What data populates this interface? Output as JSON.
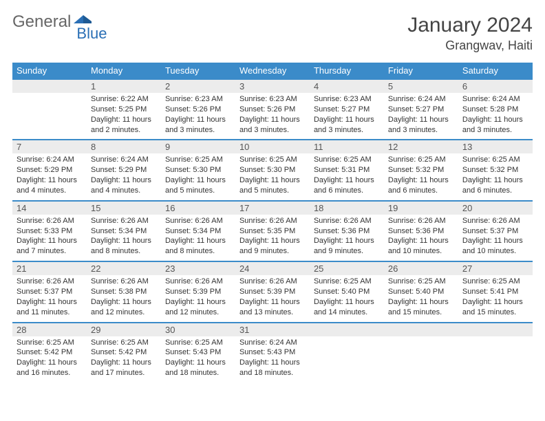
{
  "brand": {
    "left": "General",
    "right": "Blue"
  },
  "title": "January 2024",
  "location": "Grangwav, Haiti",
  "colors": {
    "header_bg": "#3b8bc9",
    "header_text": "#ffffff",
    "daynum_bg": "#ececec",
    "border": "#3b8bc9",
    "brand_gray": "#666666",
    "brand_blue": "#2a6fb5"
  },
  "dow": [
    "Sunday",
    "Monday",
    "Tuesday",
    "Wednesday",
    "Thursday",
    "Friday",
    "Saturday"
  ],
  "weeks": [
    [
      {
        "n": "",
        "sr": "",
        "ss": "",
        "dl": ""
      },
      {
        "n": "1",
        "sr": "Sunrise: 6:22 AM",
        "ss": "Sunset: 5:25 PM",
        "dl": "Daylight: 11 hours and 2 minutes."
      },
      {
        "n": "2",
        "sr": "Sunrise: 6:23 AM",
        "ss": "Sunset: 5:26 PM",
        "dl": "Daylight: 11 hours and 3 minutes."
      },
      {
        "n": "3",
        "sr": "Sunrise: 6:23 AM",
        "ss": "Sunset: 5:26 PM",
        "dl": "Daylight: 11 hours and 3 minutes."
      },
      {
        "n": "4",
        "sr": "Sunrise: 6:23 AM",
        "ss": "Sunset: 5:27 PM",
        "dl": "Daylight: 11 hours and 3 minutes."
      },
      {
        "n": "5",
        "sr": "Sunrise: 6:24 AM",
        "ss": "Sunset: 5:27 PM",
        "dl": "Daylight: 11 hours and 3 minutes."
      },
      {
        "n": "6",
        "sr": "Sunrise: 6:24 AM",
        "ss": "Sunset: 5:28 PM",
        "dl": "Daylight: 11 hours and 3 minutes."
      }
    ],
    [
      {
        "n": "7",
        "sr": "Sunrise: 6:24 AM",
        "ss": "Sunset: 5:29 PM",
        "dl": "Daylight: 11 hours and 4 minutes."
      },
      {
        "n": "8",
        "sr": "Sunrise: 6:24 AM",
        "ss": "Sunset: 5:29 PM",
        "dl": "Daylight: 11 hours and 4 minutes."
      },
      {
        "n": "9",
        "sr": "Sunrise: 6:25 AM",
        "ss": "Sunset: 5:30 PM",
        "dl": "Daylight: 11 hours and 5 minutes."
      },
      {
        "n": "10",
        "sr": "Sunrise: 6:25 AM",
        "ss": "Sunset: 5:30 PM",
        "dl": "Daylight: 11 hours and 5 minutes."
      },
      {
        "n": "11",
        "sr": "Sunrise: 6:25 AM",
        "ss": "Sunset: 5:31 PM",
        "dl": "Daylight: 11 hours and 6 minutes."
      },
      {
        "n": "12",
        "sr": "Sunrise: 6:25 AM",
        "ss": "Sunset: 5:32 PM",
        "dl": "Daylight: 11 hours and 6 minutes."
      },
      {
        "n": "13",
        "sr": "Sunrise: 6:25 AM",
        "ss": "Sunset: 5:32 PM",
        "dl": "Daylight: 11 hours and 6 minutes."
      }
    ],
    [
      {
        "n": "14",
        "sr": "Sunrise: 6:26 AM",
        "ss": "Sunset: 5:33 PM",
        "dl": "Daylight: 11 hours and 7 minutes."
      },
      {
        "n": "15",
        "sr": "Sunrise: 6:26 AM",
        "ss": "Sunset: 5:34 PM",
        "dl": "Daylight: 11 hours and 8 minutes."
      },
      {
        "n": "16",
        "sr": "Sunrise: 6:26 AM",
        "ss": "Sunset: 5:34 PM",
        "dl": "Daylight: 11 hours and 8 minutes."
      },
      {
        "n": "17",
        "sr": "Sunrise: 6:26 AM",
        "ss": "Sunset: 5:35 PM",
        "dl": "Daylight: 11 hours and 9 minutes."
      },
      {
        "n": "18",
        "sr": "Sunrise: 6:26 AM",
        "ss": "Sunset: 5:36 PM",
        "dl": "Daylight: 11 hours and 9 minutes."
      },
      {
        "n": "19",
        "sr": "Sunrise: 6:26 AM",
        "ss": "Sunset: 5:36 PM",
        "dl": "Daylight: 11 hours and 10 minutes."
      },
      {
        "n": "20",
        "sr": "Sunrise: 6:26 AM",
        "ss": "Sunset: 5:37 PM",
        "dl": "Daylight: 11 hours and 10 minutes."
      }
    ],
    [
      {
        "n": "21",
        "sr": "Sunrise: 6:26 AM",
        "ss": "Sunset: 5:37 PM",
        "dl": "Daylight: 11 hours and 11 minutes."
      },
      {
        "n": "22",
        "sr": "Sunrise: 6:26 AM",
        "ss": "Sunset: 5:38 PM",
        "dl": "Daylight: 11 hours and 12 minutes."
      },
      {
        "n": "23",
        "sr": "Sunrise: 6:26 AM",
        "ss": "Sunset: 5:39 PM",
        "dl": "Daylight: 11 hours and 12 minutes."
      },
      {
        "n": "24",
        "sr": "Sunrise: 6:26 AM",
        "ss": "Sunset: 5:39 PM",
        "dl": "Daylight: 11 hours and 13 minutes."
      },
      {
        "n": "25",
        "sr": "Sunrise: 6:25 AM",
        "ss": "Sunset: 5:40 PM",
        "dl": "Daylight: 11 hours and 14 minutes."
      },
      {
        "n": "26",
        "sr": "Sunrise: 6:25 AM",
        "ss": "Sunset: 5:40 PM",
        "dl": "Daylight: 11 hours and 15 minutes."
      },
      {
        "n": "27",
        "sr": "Sunrise: 6:25 AM",
        "ss": "Sunset: 5:41 PM",
        "dl": "Daylight: 11 hours and 15 minutes."
      }
    ],
    [
      {
        "n": "28",
        "sr": "Sunrise: 6:25 AM",
        "ss": "Sunset: 5:42 PM",
        "dl": "Daylight: 11 hours and 16 minutes."
      },
      {
        "n": "29",
        "sr": "Sunrise: 6:25 AM",
        "ss": "Sunset: 5:42 PM",
        "dl": "Daylight: 11 hours and 17 minutes."
      },
      {
        "n": "30",
        "sr": "Sunrise: 6:25 AM",
        "ss": "Sunset: 5:43 PM",
        "dl": "Daylight: 11 hours and 18 minutes."
      },
      {
        "n": "31",
        "sr": "Sunrise: 6:24 AM",
        "ss": "Sunset: 5:43 PM",
        "dl": "Daylight: 11 hours and 18 minutes."
      },
      {
        "n": "",
        "sr": "",
        "ss": "",
        "dl": ""
      },
      {
        "n": "",
        "sr": "",
        "ss": "",
        "dl": ""
      },
      {
        "n": "",
        "sr": "",
        "ss": "",
        "dl": ""
      }
    ]
  ]
}
